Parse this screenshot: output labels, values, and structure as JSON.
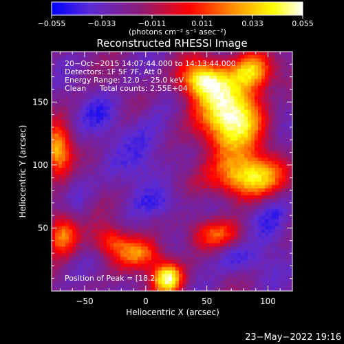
{
  "chart_data": {
    "type": "heatmap",
    "title": "Reconstructed RHESSI Image",
    "xlabel": "Heliocentric X (arcsec)",
    "ylabel": "Heliocentric Y (arcsec)",
    "xlim": [
      -77,
      120
    ],
    "ylim": [
      0,
      190
    ],
    "x_ticks": [
      -50,
      0,
      50,
      100
    ],
    "y_ticks": [
      50,
      100,
      150
    ],
    "x_tick_labels": [
      "−50",
      "0",
      "50",
      "100"
    ],
    "y_tick_labels": [
      "50",
      "100",
      "150"
    ],
    "colorbar": {
      "range": [
        -0.055,
        0.055
      ],
      "ticks": [
        -0.055,
        -0.033,
        -0.011,
        0.011,
        0.033,
        0.055
      ],
      "tick_labels": [
        "−0.055",
        "−0.033",
        "−0.011",
        "0.011",
        "0.033",
        "0.055"
      ],
      "units_label": "(photons cm⁻² s⁻¹ asec⁻²)",
      "colors": [
        "#0000ff",
        "#5a2bd6",
        "#8c1c78",
        "#ff0000",
        "#ff8c00",
        "#ffff00",
        "#ffffff"
      ]
    },
    "annotations": {
      "time_range": "20−Oct−2015 14:07:44.000 to 14:13:44.000",
      "detectors": "Detectors: 1F 5F 7F, Att 0",
      "energy": "Energy Range: 12.0 − 25.0 keV",
      "clean_label": "Clean",
      "counts": "Total counts: 2.55E+04",
      "peak": "Position of Peak = [18.2,"
    },
    "sources": [
      {
        "x": 70,
        "y": 140,
        "sx": 20,
        "sy": 22,
        "amp": 1.0
      },
      {
        "x": 45,
        "y": 168,
        "sx": 13,
        "sy": 10,
        "amp": 0.75
      },
      {
        "x": 88,
        "y": 175,
        "sx": 12,
        "sy": 10,
        "amp": 0.65
      },
      {
        "x": 85,
        "y": 90,
        "sx": 22,
        "sy": 12,
        "amp": 0.8
      },
      {
        "x": -72,
        "y": 112,
        "sx": 8,
        "sy": 14,
        "amp": 0.7
      },
      {
        "x": -68,
        "y": 45,
        "sx": 9,
        "sy": 12,
        "amp": 0.65
      },
      {
        "x": 18,
        "y": 10,
        "sx": 9,
        "sy": 9,
        "amp": 0.95
      },
      {
        "x": -5,
        "y": 30,
        "sx": 14,
        "sy": 9,
        "amp": 0.55
      },
      {
        "x": 60,
        "y": 45,
        "sx": 16,
        "sy": 8,
        "amp": 0.45
      },
      {
        "x": -30,
        "y": 40,
        "sx": 10,
        "sy": 8,
        "amp": 0.4
      }
    ],
    "sinks": [
      {
        "x": 0,
        "y": 110,
        "sx": 14,
        "sy": 20,
        "amp": 0.6
      },
      {
        "x": -35,
        "y": 140,
        "sx": 12,
        "sy": 12,
        "amp": 0.5
      },
      {
        "x": 105,
        "y": 60,
        "sx": 12,
        "sy": 18,
        "amp": 0.65
      },
      {
        "x": 20,
        "y": 70,
        "sx": 18,
        "sy": 8,
        "amp": 0.45
      },
      {
        "x": 75,
        "y": 25,
        "sx": 16,
        "sy": 10,
        "amp": 0.5
      },
      {
        "x": -55,
        "y": 80,
        "sx": 8,
        "sy": 14,
        "amp": 0.35
      },
      {
        "x": 105,
        "y": 150,
        "sx": 10,
        "sy": 14,
        "amp": 0.4
      }
    ]
  },
  "timestamp": "23−May−2022 19:16"
}
